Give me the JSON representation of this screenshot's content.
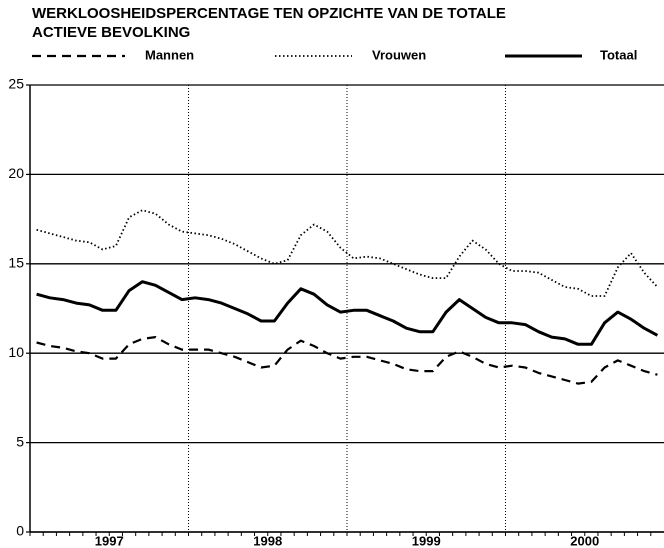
{
  "chart_data": {
    "type": "line",
    "title": [
      "WERKLOOSHEIDSPERCENTAGE TEN OPZICHTE VAN DE TOTALE",
      "ACTIEVE BEVOLKING"
    ],
    "categories": [
      null,
      null,
      null,
      null,
      null,
      null,
      null,
      null,
      null,
      null,
      null,
      null,
      null,
      null,
      null,
      null,
      null,
      null,
      null,
      null,
      null,
      null,
      null,
      null,
      null,
      null,
      null,
      null,
      null,
      null,
      null,
      null,
      null,
      null,
      null,
      null,
      null,
      null,
      null,
      null,
      null,
      null,
      null,
      null,
      null,
      null,
      null,
      null
    ],
    "years": [
      "1997",
      "1998",
      "1999",
      "2000"
    ],
    "series": [
      {
        "name": "Mannen",
        "color": "#000000",
        "style": "dashed",
        "values": [
          10.6,
          10.4,
          10.3,
          10.1,
          10.0,
          9.7,
          9.7,
          10.5,
          10.8,
          10.9,
          10.5,
          10.2,
          10.2,
          10.2,
          10.0,
          9.8,
          9.5,
          9.2,
          9.3,
          10.2,
          10.7,
          10.4,
          10.0,
          9.7,
          9.8,
          9.8,
          9.6,
          9.4,
          9.1,
          9.0,
          9.0,
          9.8,
          10.1,
          9.8,
          9.4,
          9.2,
          9.3,
          9.2,
          8.9,
          8.7,
          8.5,
          8.3,
          8.4,
          9.2,
          9.6,
          9.3,
          9.0,
          8.8
        ]
      },
      {
        "name": "Vrouwen",
        "color": "#000000",
        "style": "dotted",
        "values": [
          16.9,
          16.7,
          16.5,
          16.3,
          16.2,
          15.8,
          16.0,
          17.6,
          18.0,
          17.8,
          17.2,
          16.8,
          16.7,
          16.6,
          16.4,
          16.1,
          15.7,
          15.3,
          15.0,
          15.2,
          16.6,
          17.2,
          16.8,
          15.9,
          15.3,
          15.4,
          15.3,
          15.0,
          14.7,
          14.4,
          14.2,
          14.2,
          15.4,
          16.3,
          15.8,
          15.0,
          14.6,
          14.6,
          14.5,
          14.1,
          13.7,
          13.6,
          13.2,
          13.2,
          14.8,
          15.6,
          14.5,
          13.7
        ]
      },
      {
        "name": "Totaal",
        "color": "#000000",
        "style": "solid",
        "values": [
          13.3,
          13.1,
          13.0,
          12.8,
          12.7,
          12.4,
          12.4,
          13.5,
          14.0,
          13.8,
          13.4,
          13.0,
          13.1,
          13.0,
          12.8,
          12.5,
          12.2,
          11.8,
          11.8,
          12.8,
          13.6,
          13.3,
          12.7,
          12.3,
          12.4,
          12.4,
          12.1,
          11.8,
          11.4,
          11.2,
          11.2,
          12.3,
          13.0,
          12.5,
          12.0,
          11.7,
          11.7,
          11.6,
          11.2,
          10.9,
          10.8,
          10.5,
          10.5,
          11.7,
          12.3,
          11.9,
          11.4,
          11.0
        ]
      }
    ],
    "ylim": [
      0,
      25
    ],
    "yticks": [
      0,
      5,
      10,
      15,
      20,
      25
    ],
    "grid": true
  }
}
